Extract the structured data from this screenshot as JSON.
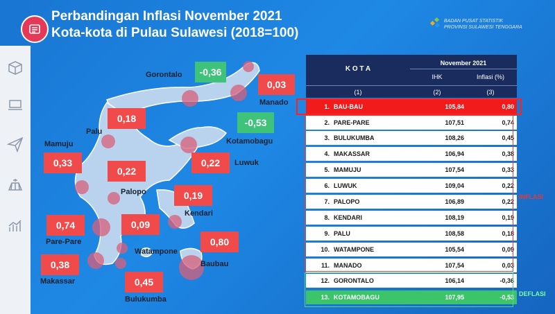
{
  "header": {
    "title_line1": "Perbandingan Inflasi November 2021",
    "title_line2": "Kota-kota di Pulau Sulawesi (2018=100)",
    "org_line1": "BADAN PUSAT STATISTIK",
    "org_line2": "PROVINSI SULAWESI TENGGARA"
  },
  "sidebar": {
    "icons": [
      "package-icon",
      "laptop-icon",
      "paper-plane-icon",
      "field-icon",
      "chart-icon"
    ]
  },
  "map": {
    "badges": [
      {
        "city": "Gorontalo",
        "value": "-0,36",
        "type": "deflasi"
      },
      {
        "city": "Manado",
        "value": "0,03",
        "type": "inflasi"
      },
      {
        "city": "Kotamobagu",
        "value": "-0,53",
        "type": "deflasi"
      },
      {
        "city": "Palu",
        "value": "0,18",
        "type": "inflasi"
      },
      {
        "city": "Mamuju",
        "value": "0,33",
        "type": "inflasi"
      },
      {
        "city": "Palopo",
        "value": "0,22",
        "type": "inflasi"
      },
      {
        "city": "Luwuk",
        "value": "0,22",
        "type": "inflasi"
      },
      {
        "city": "Kendari",
        "value": "0,19",
        "type": "inflasi"
      },
      {
        "city": "Pare-Pare",
        "value": "0,74",
        "type": "inflasi"
      },
      {
        "city": "Watampone",
        "value": "0,09",
        "type": "inflasi"
      },
      {
        "city": "Baubau",
        "value": "0,80",
        "type": "inflasi"
      },
      {
        "city": "Makassar",
        "value": "0,38",
        "type": "inflasi"
      },
      {
        "city": "Bulukumba",
        "value": "0,45",
        "type": "inflasi"
      }
    ]
  },
  "table": {
    "col_kota": "K O T A",
    "col_period": "November 2021",
    "col_ihk": "IHK",
    "col_inflasi": "Inflasi (%)",
    "num1": "(1)",
    "num2": "(2)",
    "num3": "(3)",
    "rows": [
      {
        "no": "1.",
        "kota": "BAU-BAU",
        "ihk": "105,84",
        "inflasi": "0,80"
      },
      {
        "no": "2.",
        "kota": "PARE-PARE",
        "ihk": "107,51",
        "inflasi": "0,74"
      },
      {
        "no": "3.",
        "kota": "BULUKUMBA",
        "ihk": "108,26",
        "inflasi": "0,45"
      },
      {
        "no": "4.",
        "kota": "MAKASSAR",
        "ihk": "106,94",
        "inflasi": "0,38"
      },
      {
        "no": "5.",
        "kota": "MAMUJU",
        "ihk": "107,54",
        "inflasi": "0,33"
      },
      {
        "no": "6.",
        "kota": "LUWUK",
        "ihk": "109,04",
        "inflasi": "0,22"
      },
      {
        "no": "7.",
        "kota": "PALOPO",
        "ihk": "106,89",
        "inflasi": "0,22"
      },
      {
        "no": "8.",
        "kota": "KENDARI",
        "ihk": "108,19",
        "inflasi": "0,19"
      },
      {
        "no": "9.",
        "kota": "PALU",
        "ihk": "108,58",
        "inflasi": "0,18"
      },
      {
        "no": "10.",
        "kota": "WATAMPONE",
        "ihk": "105,54",
        "inflasi": "0,09"
      },
      {
        "no": "11.",
        "kota": "MANADO",
        "ihk": "107,54",
        "inflasi": "0,03"
      },
      {
        "no": "12.",
        "kota": "GORONTALO",
        "ihk": "106,14",
        "inflasi": "-0,36"
      },
      {
        "no": "13.",
        "kota": "KOTAMOBAGU",
        "ihk": "107,95",
        "inflasi": "-0,53"
      }
    ],
    "label_inflasi": "INFLASI",
    "label_deflasi": "DEFLASI"
  },
  "colors": {
    "inflasi_badge": "#f04a4a",
    "deflasi_badge": "#3fc27a",
    "header_bg": "#1a2c5e",
    "highlight_red": "#f21b1b",
    "highlight_green": "#3cc46a"
  }
}
